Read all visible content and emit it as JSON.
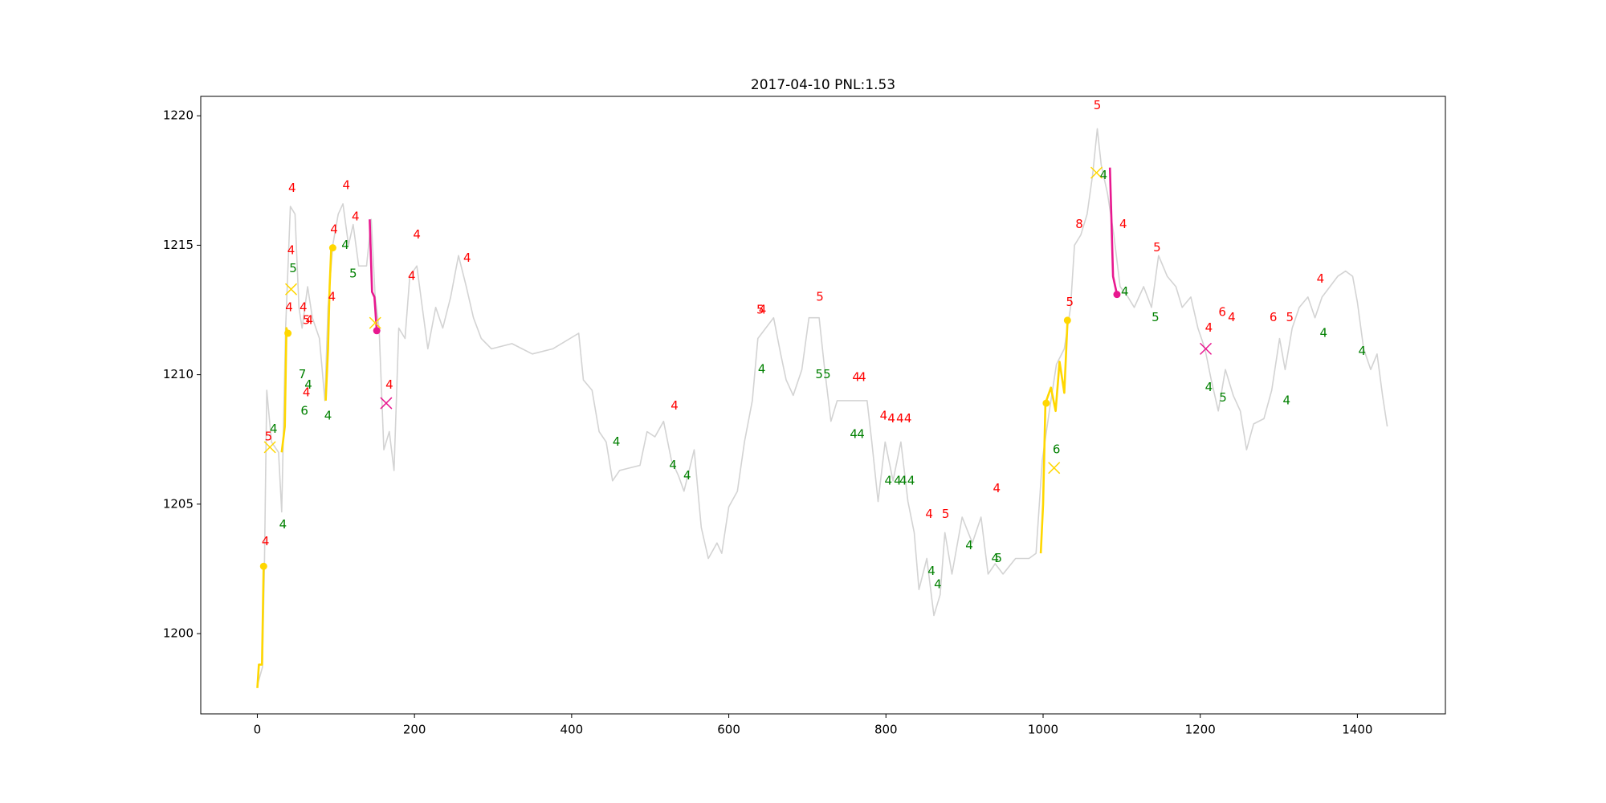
{
  "chart_data": {
    "type": "line",
    "title": "2017-04-10 PNL:1.53",
    "xlim": [
      -72,
      1512
    ],
    "ylim": [
      1196.9,
      1220.75
    ],
    "xticks": [
      0,
      200,
      400,
      600,
      800,
      1000,
      1200,
      1400
    ],
    "yticks": [
      1200,
      1205,
      1210,
      1215,
      1220
    ],
    "series": [
      {
        "color": "#d3d3d3",
        "x": [
          0,
          6.5,
          9,
          12,
          18,
          27,
          31,
          36,
          42,
          48,
          53,
          57,
          64,
          70,
          79,
          86,
          90,
          96,
          103,
          109,
          116,
          122,
          129,
          139,
          145,
          150,
          155,
          161,
          168,
          174,
          180,
          188,
          194,
          203,
          210,
          217,
          227,
          236,
          246,
          256,
          266,
          275,
          285,
          298,
          324,
          350,
          376,
          409,
          415,
          426,
          435,
          444,
          452,
          461,
          487,
          496,
          506,
          517,
          527,
          536,
          543,
          556,
          565,
          574,
          585,
          591,
          600,
          611,
          620,
          630,
          637,
          647,
          657,
          666,
          673,
          682,
          693,
          702,
          715,
          722,
          730,
          738,
          756,
          776,
          782,
          790,
          799,
          809,
          819,
          828,
          836,
          842,
          852,
          861,
          869,
          875,
          884,
          897,
          910,
          921,
          930,
          939,
          949,
          965,
          982,
          991,
          999,
          1008,
          1017,
          1027,
          1035,
          1040,
          1048,
          1056,
          1063,
          1069,
          1074,
          1082,
          1090,
          1098,
          1108,
          1116,
          1128,
          1138,
          1147,
          1158,
          1169,
          1177,
          1188,
          1197,
          1206,
          1214,
          1223,
          1232,
          1242,
          1251,
          1259,
          1268,
          1281,
          1291,
          1301,
          1308,
          1317,
          1326,
          1337,
          1346,
          1355,
          1365,
          1375,
          1385,
          1394,
          1400,
          1408,
          1417,
          1425,
          1432,
          1438
        ],
        "values": [
          1198,
          1198.7,
          1202.6,
          1209.4,
          1207.4,
          1207,
          1204.7,
          1211.8,
          1216.5,
          1216.2,
          1212.6,
          1211.8,
          1213.4,
          1212.2,
          1211.4,
          1209,
          1212.6,
          1215,
          1216.2,
          1216.6,
          1215,
          1215.8,
          1214.2,
          1214.2,
          1216,
          1213,
          1211.8,
          1207.1,
          1207.8,
          1206.3,
          1211.8,
          1211.4,
          1213.8,
          1214.2,
          1212.6,
          1211,
          1212.6,
          1211.8,
          1213,
          1214.6,
          1213.4,
          1212.2,
          1211.4,
          1211,
          1211.2,
          1210.8,
          1211,
          1211.6,
          1209.8,
          1209.4,
          1207.8,
          1207.4,
          1205.9,
          1206.3,
          1206.5,
          1207.8,
          1207.6,
          1208.2,
          1206.7,
          1206.1,
          1205.5,
          1207.1,
          1204.1,
          1202.9,
          1203.5,
          1203.1,
          1204.9,
          1205.5,
          1207.4,
          1209,
          1211.4,
          1211.8,
          1212.2,
          1210.8,
          1209.8,
          1209.2,
          1210.2,
          1212.2,
          1212.2,
          1210.2,
          1208.2,
          1209,
          1209,
          1209,
          1207.4,
          1205.1,
          1207.4,
          1205.9,
          1207.4,
          1205.1,
          1203.9,
          1201.7,
          1202.9,
          1200.7,
          1201.5,
          1203.9,
          1202.3,
          1204.5,
          1203.5,
          1204.5,
          1202.3,
          1202.7,
          1202.3,
          1202.9,
          1202.9,
          1203.1,
          1206.7,
          1208.6,
          1210.4,
          1211,
          1212.6,
          1215,
          1215.4,
          1216.2,
          1217.7,
          1219.5,
          1218.1,
          1217,
          1215.4,
          1213.4,
          1213,
          1212.6,
          1213.4,
          1212.6,
          1214.6,
          1213.8,
          1213.4,
          1212.6,
          1213,
          1211.8,
          1211,
          1209.8,
          1208.6,
          1210.2,
          1209.2,
          1208.6,
          1207.1,
          1208.1,
          1208.3,
          1209.4,
          1211.4,
          1210.2,
          1211.8,
          1212.6,
          1213,
          1212.2,
          1213,
          1213.4,
          1213.8,
          1214,
          1213.8,
          1212.8,
          1211,
          1210.2,
          1210.8,
          1209.2,
          1208
        ]
      },
      {
        "color": "#ffd700",
        "x": [
          0,
          2,
          6,
          8
        ],
        "values": [
          1197.9,
          1198.8,
          1198.8,
          1202.6
        ]
      },
      {
        "color": "#ffd700",
        "x": [
          31,
          35,
          37,
          39
        ],
        "values": [
          1207,
          1208,
          1211.8,
          1211.6
        ]
      },
      {
        "color": "#ffd700",
        "x": [
          87,
          90,
          92,
          94,
          97
        ],
        "values": [
          1209,
          1211,
          1213.4,
          1214.8,
          1215
        ]
      },
      {
        "color": "#ffd700",
        "x": [
          997,
          1000,
          1003,
          1010,
          1016,
          1021,
          1027,
          1031
        ],
        "values": [
          1203.1,
          1205,
          1208.9,
          1209.5,
          1208.6,
          1210.5,
          1209.3,
          1212
        ]
      },
      {
        "color": "#e8188f",
        "x": [
          143,
          146,
          149,
          152
        ],
        "values": [
          1216,
          1213.2,
          1213,
          1211.7
        ]
      },
      {
        "color": "#e8188f",
        "x": [
          1085,
          1087,
          1089,
          1094
        ],
        "values": [
          1218,
          1216,
          1213.8,
          1213.1
        ]
      }
    ],
    "markers": [
      {
        "color": "#ffd700",
        "marker": "o",
        "x": [
          8,
          39,
          96,
          1004,
          1031
        ],
        "values": [
          1202.6,
          1211.6,
          1214.9,
          1208.9,
          1212.1
        ]
      },
      {
        "color": "#e8188f",
        "marker": "o",
        "x": [
          152,
          1094
        ],
        "values": [
          1211.7,
          1213.1
        ]
      },
      {
        "color": "#ffd700",
        "marker": "x",
        "x": [
          16,
          43,
          150,
          1014,
          1068
        ],
        "values": [
          1207.2,
          1213.3,
          1212,
          1206.4,
          1217.8
        ]
      },
      {
        "color": "#e8188f",
        "marker": "x",
        "x": [
          164,
          1207
        ],
        "values": [
          1208.9,
          1211
        ]
      }
    ],
    "annotations": [
      {
        "color": "#ff0000",
        "x": [
          10.4,
          14.3,
          44.3,
          43,
          40.4,
          58.6,
          62.5,
          66.4,
          62.5,
          95,
          97.7,
          113.3,
          125,
          168,
          196.6,
          203,
          267,
          531,
          640,
          643,
          716,
          762,
          770,
          797,
          807,
          818,
          828,
          855,
          876,
          941,
          1034,
          1046,
          1069,
          1102,
          1145,
          1211,
          1228,
          1240,
          1293,
          1314,
          1353
        ],
        "y": [
          1203.56,
          1207.6,
          1217.2,
          1214.8,
          1212.6,
          1212.6,
          1212.1,
          1212.1,
          1209.3,
          1213,
          1215.6,
          1217.3,
          1216.1,
          1209.6,
          1213.8,
          1215.4,
          1214.5,
          1208.8,
          1212.5,
          1212.5,
          1213,
          1209.9,
          1209.9,
          1208.4,
          1208.3,
          1208.3,
          1208.3,
          1204.6,
          1204.6,
          1205.6,
          1212.8,
          1215.8,
          1220.4,
          1215.8,
          1214.9,
          1211.8,
          1212.4,
          1212.2,
          1212.2,
          1212.2,
          1213.7
        ],
        "labels": [
          "4",
          "5",
          "4",
          "4",
          "4",
          "4",
          "5",
          "4",
          "4",
          "4",
          "4",
          "4",
          "4",
          "4",
          "4",
          "4",
          "4",
          "4",
          "5",
          "4",
          "5",
          "4",
          "4",
          "4",
          "4",
          "4",
          "4",
          "4",
          "5",
          "4",
          "5",
          "8",
          "5",
          "4",
          "5",
          "4",
          "6",
          "4",
          "6",
          "5",
          "4"
        ]
      },
      {
        "color": "#008000",
        "x": [
          20.8,
          32.6,
          45.6,
          57.3,
          65,
          60,
          90,
          112,
          122,
          457,
          529,
          547,
          642,
          715,
          725,
          759,
          768,
          803,
          815,
          822,
          832,
          858,
          866,
          906,
          939,
          943,
          1017,
          1077,
          1104,
          1143,
          1211,
          1229,
          1310,
          1357,
          1406
        ],
        "y": [
          1207.9,
          1204.2,
          1214.1,
          1210,
          1209.6,
          1208.6,
          1208.4,
          1215,
          1213.9,
          1207.4,
          1206.5,
          1206.1,
          1210.2,
          1210,
          1210,
          1207.7,
          1207.7,
          1205.9,
          1205.9,
          1205.9,
          1205.9,
          1202.4,
          1201.9,
          1203.4,
          1202.9,
          1202.9,
          1207.1,
          1217.7,
          1213.2,
          1212.2,
          1209.5,
          1209.1,
          1209,
          1211.6,
          1210.9
        ],
        "labels": [
          "4",
          "4",
          "5",
          "7",
          "4",
          "6",
          "4",
          "4",
          "5",
          "4",
          "4",
          "4",
          "4",
          "5",
          "5",
          "4",
          "4",
          "4",
          "4",
          "4",
          "4",
          "4",
          "4",
          "4",
          "4",
          "5",
          "6",
          "4",
          "4",
          "5",
          "4",
          "5",
          "4",
          "4",
          "4"
        ]
      }
    ]
  }
}
